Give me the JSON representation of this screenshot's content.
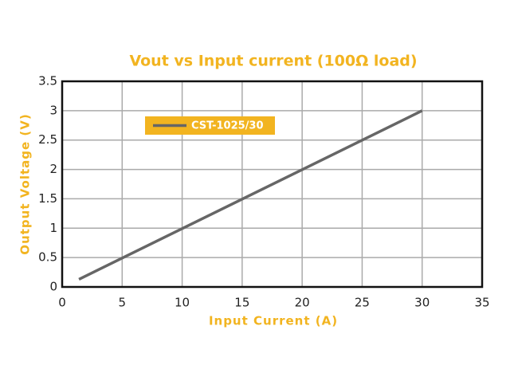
{
  "chart_data": {
    "type": "line",
    "title": "Vout vs Input current (100Ω load)",
    "x_label": "Input Current (A)",
    "y_label": "Output Voltage (V)",
    "x": [
      1.4,
      30
    ],
    "series": [
      {
        "name": "CST-1025/30",
        "color": "#666666",
        "values": [
          0.13,
          3.0
        ]
      }
    ],
    "xlim": [
      0,
      35
    ],
    "xticks": [
      0,
      5,
      10,
      15,
      20,
      25,
      30,
      35
    ],
    "ylim": [
      0,
      3.5
    ],
    "yticks": [
      0,
      0.5,
      1,
      1.5,
      2,
      2.5,
      3,
      3.5
    ],
    "grid": true,
    "legend_position": "upper left",
    "legend_color": "#f2b420",
    "label_color": "#f2b420"
  }
}
